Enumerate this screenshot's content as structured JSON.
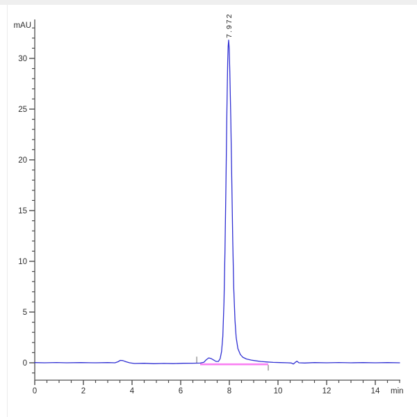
{
  "page": {
    "background_color": "#ffffff",
    "top_strip_color": "#efefef"
  },
  "chart_data": {
    "type": "line",
    "title": "",
    "ylabel": "mAU",
    "xlabel": "min",
    "xlim": [
      0,
      15
    ],
    "ylim": [
      -1.7,
      33.8
    ],
    "grid": false,
    "legend": "none",
    "x_major_ticks": [
      0,
      2,
      4,
      6,
      8,
      10,
      12,
      14
    ],
    "x_minor_tick_step": 0.5,
    "y_major_ticks": [
      0,
      5,
      10,
      15,
      20,
      25,
      30
    ],
    "y_minor_tick_step": 1,
    "axis_color": "#6e6e6e",
    "tick_color": "#4a4a4a",
    "label_color": "#2e2e2e",
    "series": [
      {
        "name": "detector-signal",
        "color": "#2f2fd3",
        "points": [
          [
            0.0,
            0.02
          ],
          [
            0.4,
            0.0
          ],
          [
            0.9,
            0.03
          ],
          [
            1.3,
            0.0
          ],
          [
            1.9,
            0.02
          ],
          [
            2.5,
            0.0
          ],
          [
            3.0,
            0.02
          ],
          [
            3.3,
            0.0
          ],
          [
            3.42,
            0.1
          ],
          [
            3.52,
            0.24
          ],
          [
            3.62,
            0.22
          ],
          [
            3.75,
            0.1
          ],
          [
            3.9,
            0.0
          ],
          [
            4.1,
            -0.07
          ],
          [
            4.5,
            -0.05
          ],
          [
            4.9,
            -0.09
          ],
          [
            5.3,
            -0.06
          ],
          [
            5.7,
            -0.08
          ],
          [
            6.1,
            -0.05
          ],
          [
            6.5,
            -0.04
          ],
          [
            6.8,
            -0.03
          ],
          [
            6.95,
            0.05
          ],
          [
            7.05,
            0.3
          ],
          [
            7.15,
            0.48
          ],
          [
            7.25,
            0.42
          ],
          [
            7.35,
            0.28
          ],
          [
            7.45,
            0.14
          ],
          [
            7.55,
            0.14
          ],
          [
            7.62,
            0.4
          ],
          [
            7.68,
            1.1
          ],
          [
            7.73,
            2.6
          ],
          [
            7.78,
            6.0
          ],
          [
            7.82,
            11.0
          ],
          [
            7.86,
            17.5
          ],
          [
            7.9,
            25.0
          ],
          [
            7.93,
            29.6
          ],
          [
            7.95,
            31.2
          ],
          [
            7.972,
            31.8
          ],
          [
            7.995,
            31.0
          ],
          [
            8.02,
            28.6
          ],
          [
            8.06,
            24.0
          ],
          [
            8.1,
            18.0
          ],
          [
            8.14,
            12.0
          ],
          [
            8.18,
            7.4
          ],
          [
            8.23,
            4.2
          ],
          [
            8.28,
            2.5
          ],
          [
            8.35,
            1.4
          ],
          [
            8.45,
            0.82
          ],
          [
            8.55,
            0.55
          ],
          [
            8.7,
            0.38
          ],
          [
            8.9,
            0.27
          ],
          [
            9.1,
            0.19
          ],
          [
            9.3,
            0.13
          ],
          [
            9.55,
            0.08
          ],
          [
            9.8,
            0.04
          ],
          [
            10.1,
            0.02
          ],
          [
            10.4,
            0.0
          ],
          [
            10.55,
            -0.02
          ],
          [
            10.63,
            -0.12
          ],
          [
            10.72,
            0.06
          ],
          [
            10.78,
            0.16
          ],
          [
            10.86,
            0.0
          ],
          [
            11.1,
            -0.02
          ],
          [
            11.5,
            0.02
          ],
          [
            12.0,
            0.0
          ],
          [
            12.5,
            0.03
          ],
          [
            13.0,
            0.0
          ],
          [
            13.5,
            0.02
          ],
          [
            14.0,
            0.0
          ],
          [
            14.5,
            0.02
          ],
          [
            15.0,
            0.0
          ]
        ]
      }
    ],
    "integration": {
      "baseline_color": "#fa7ef2",
      "baseline_y": -0.15,
      "x_start": 6.8,
      "x_end": 9.6,
      "marker_color": "#9b9b9b",
      "start_marker_x": 6.66,
      "end_marker_x": 9.6
    },
    "peak_labels": [
      {
        "text": "7.972",
        "x": 7.972,
        "y": 31.8,
        "rotation": -90
      }
    ]
  }
}
